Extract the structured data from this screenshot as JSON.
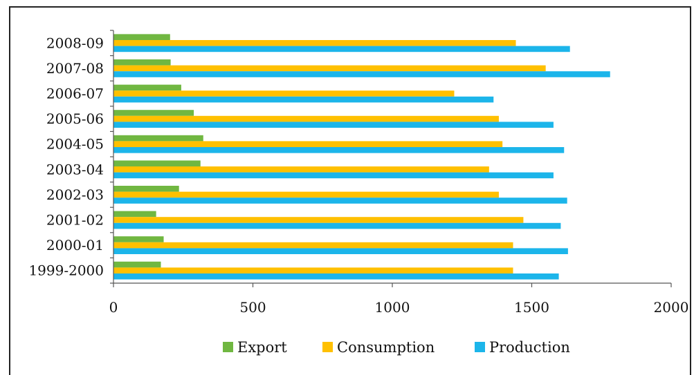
{
  "chart_data": {
    "type": "bar",
    "orientation": "horizontal",
    "title": "",
    "xlabel": "",
    "ylabel": "",
    "categories": [
      "2008-09",
      "2007-08",
      "2006-07",
      "2005-06",
      "2004-05",
      "2003-04",
      "2002-03",
      "2001-02",
      "2000-01",
      "1999-2000"
    ],
    "series": [
      {
        "name": "Export",
        "color": "#70b741",
        "values": [
          203,
          205,
          243,
          288,
          322,
          312,
          235,
          153,
          180,
          170
        ]
      },
      {
        "name": "Consumption",
        "color": "#ffc000",
        "values": [
          1443,
          1550,
          1222,
          1382,
          1395,
          1347,
          1382,
          1470,
          1433,
          1433
        ]
      },
      {
        "name": "Production",
        "color": "#1cb5ea",
        "values": [
          1637,
          1781,
          1363,
          1578,
          1616,
          1578,
          1627,
          1604,
          1630,
          1597
        ]
      }
    ],
    "xlim": [
      0,
      2000
    ],
    "xticks": [
      0,
      500,
      1000,
      1500,
      2000
    ],
    "grid": false,
    "legend_position": "bottom"
  }
}
